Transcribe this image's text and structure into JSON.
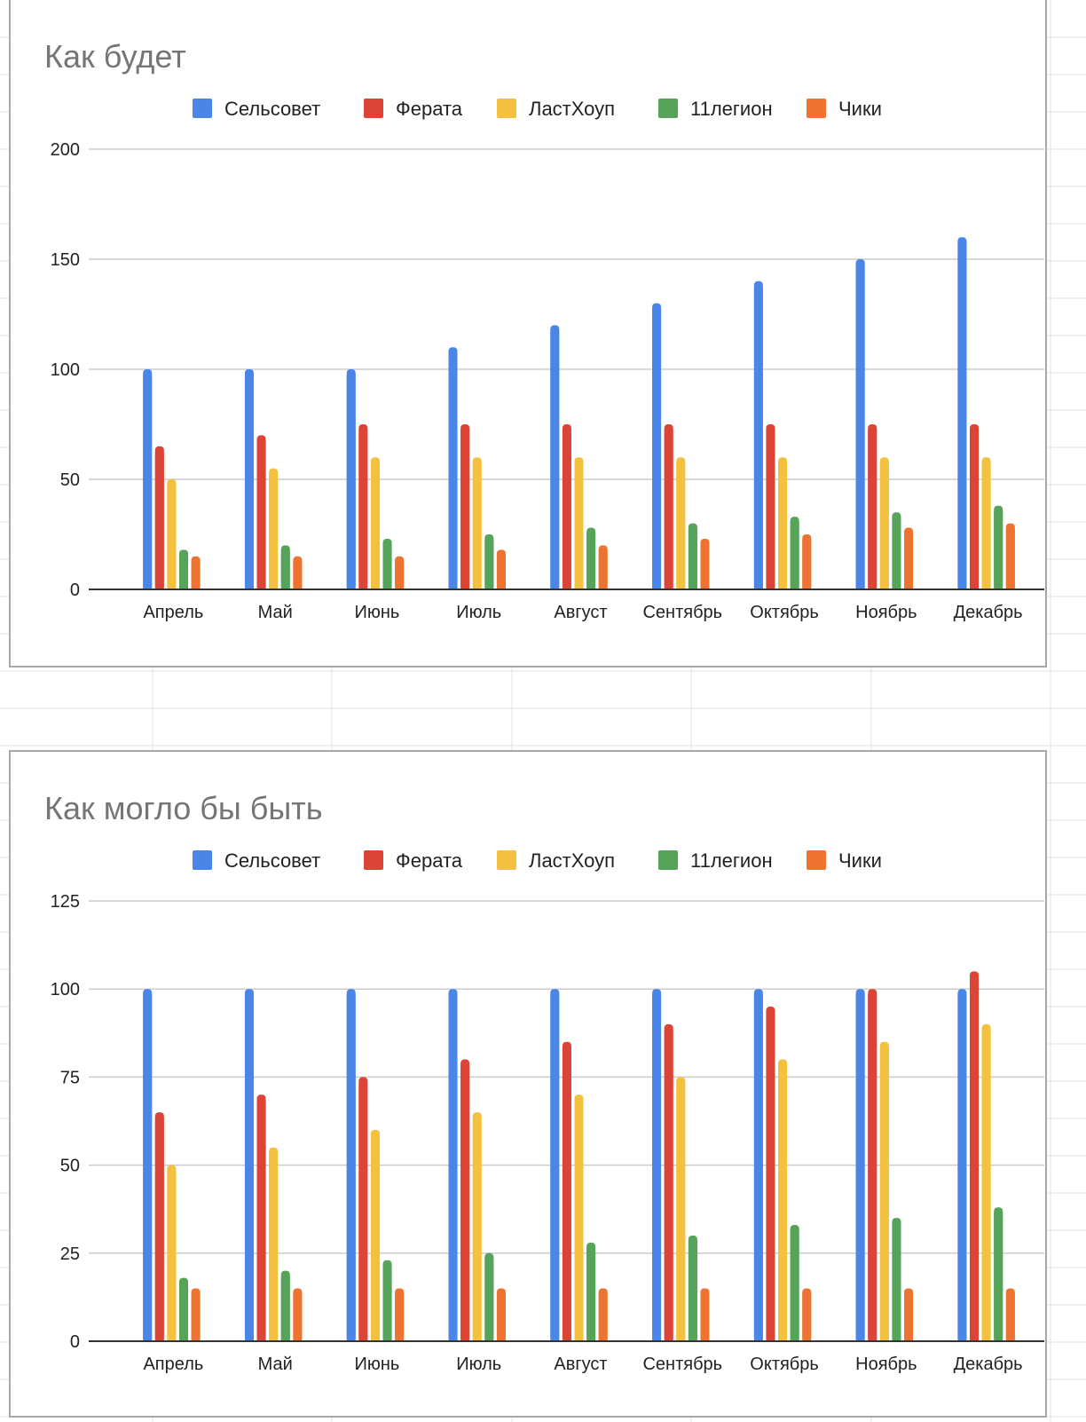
{
  "colors": {
    "Сельсовет": "#4a86e8",
    "Ферата": "#db4437",
    "ЛастХоуп": "#f4c13e",
    "11легион": "#56a35a",
    "Чики": "#ee7330",
    "gridline": "#cccccc",
    "sheet_grid": "#e1e1e1"
  },
  "chart_data": [
    {
      "type": "bar",
      "title": "Как будет",
      "categories": [
        "Апрель",
        "Май",
        "Июнь",
        "Июль",
        "Август",
        "Сентябрь",
        "Октябрь",
        "Ноябрь",
        "Декабрь"
      ],
      "series": [
        {
          "name": "Сельсовет",
          "values": [
            100,
            100,
            100,
            110,
            120,
            130,
            140,
            150,
            160
          ]
        },
        {
          "name": "Ферата",
          "values": [
            65,
            70,
            75,
            75,
            75,
            75,
            75,
            75,
            75
          ]
        },
        {
          "name": "ЛастХоуп",
          "values": [
            50,
            55,
            60,
            60,
            60,
            60,
            60,
            60,
            60
          ]
        },
        {
          "name": "11легион",
          "values": [
            18,
            20,
            23,
            25,
            28,
            30,
            33,
            35,
            38
          ]
        },
        {
          "name": "Чики",
          "values": [
            15,
            15,
            15,
            18,
            20,
            23,
            25,
            28,
            30
          ]
        }
      ],
      "yticks": [
        0,
        50,
        100,
        150,
        200
      ],
      "ylim": [
        0,
        200
      ],
      "xlabel": "",
      "ylabel": "",
      "legend": "top"
    },
    {
      "type": "bar",
      "title": "Как могло бы быть",
      "categories": [
        "Апрель",
        "Май",
        "Июнь",
        "Июль",
        "Август",
        "Сентябрь",
        "Октябрь",
        "Ноябрь",
        "Декабрь"
      ],
      "series": [
        {
          "name": "Сельсовет",
          "values": [
            100,
            100,
            100,
            100,
            100,
            100,
            100,
            100,
            100
          ]
        },
        {
          "name": "Ферата",
          "values": [
            65,
            70,
            75,
            80,
            85,
            90,
            95,
            100,
            105
          ]
        },
        {
          "name": "ЛастХоуп",
          "values": [
            50,
            55,
            60,
            65,
            70,
            75,
            80,
            85,
            90
          ]
        },
        {
          "name": "11легион",
          "values": [
            18,
            20,
            23,
            25,
            28,
            30,
            33,
            35,
            38
          ]
        },
        {
          "name": "Чики",
          "values": [
            15,
            15,
            15,
            15,
            15,
            15,
            15,
            15,
            15
          ]
        }
      ],
      "yticks": [
        0,
        25,
        50,
        75,
        100,
        125
      ],
      "ylim": [
        0,
        125
      ],
      "xlabel": "",
      "ylabel": "",
      "legend": "top"
    }
  ]
}
